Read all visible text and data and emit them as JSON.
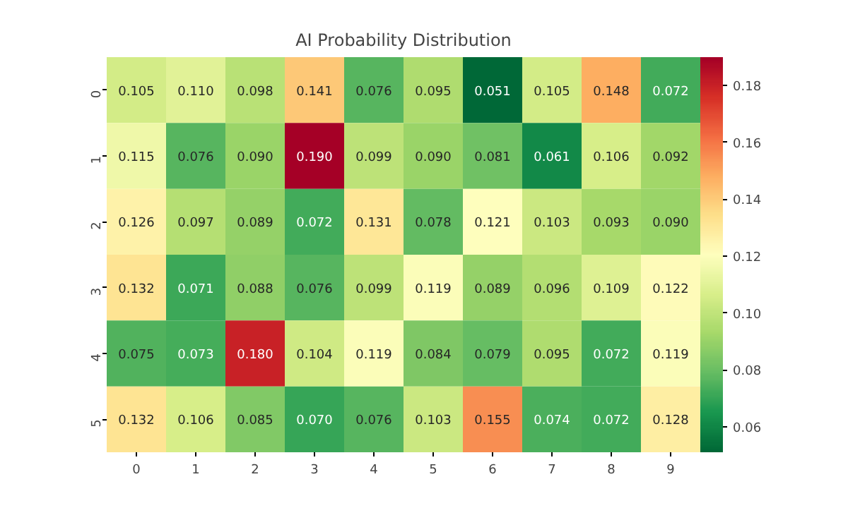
{
  "chart_data": {
    "type": "heatmap",
    "title": "AI Probability Distribution",
    "categories": [
      "0",
      "1",
      "2",
      "3",
      "4",
      "5",
      "6",
      "7",
      "8",
      "9"
    ],
    "y_categories": [
      "0",
      "1",
      "2",
      "3",
      "4",
      "5"
    ],
    "cells": [
      [
        0.105,
        0.11,
        0.098,
        0.141,
        0.076,
        0.095,
        0.051,
        0.105,
        0.148,
        0.072
      ],
      [
        0.115,
        0.076,
        0.09,
        0.19,
        0.099,
        0.09,
        0.081,
        0.061,
        0.106,
        0.092
      ],
      [
        0.126,
        0.097,
        0.089,
        0.072,
        0.131,
        0.078,
        0.121,
        0.103,
        0.093,
        0.09
      ],
      [
        0.132,
        0.071,
        0.088,
        0.076,
        0.099,
        0.119,
        0.089,
        0.096,
        0.109,
        0.122
      ],
      [
        0.075,
        0.073,
        0.18,
        0.104,
        0.119,
        0.084,
        0.079,
        0.095,
        0.072,
        0.119
      ],
      [
        0.132,
        0.106,
        0.085,
        0.07,
        0.076,
        0.103,
        0.155,
        0.074,
        0.072,
        0.128
      ]
    ],
    "clim": [
      0.051,
      0.19
    ],
    "cticks": [
      0.06,
      0.08,
      {
        "value": 0.1,
        "label": "0.10"
      },
      0.12,
      0.14,
      0.16,
      0.18
    ],
    "cell_labels": [
      [
        "0.105",
        "0.110",
        "0.098",
        "0.141",
        "0.076",
        "0.095",
        "0.051",
        "0.105",
        "0.148",
        "0.072"
      ],
      [
        "0.115",
        "0.076",
        "0.090",
        "0.190",
        "0.099",
        "0.090",
        "0.081",
        "0.061",
        "0.106",
        "0.092"
      ],
      [
        "0.126",
        "0.097",
        "0.089",
        "0.072",
        "0.131",
        "0.078",
        "0.121",
        "0.103",
        "0.093",
        "0.090"
      ],
      [
        "0.132",
        "0.071",
        "0.088",
        "0.076",
        "0.099",
        "0.119",
        "0.089",
        "0.096",
        "0.109",
        "0.122"
      ],
      [
        "0.075",
        "0.073",
        "0.180",
        "0.104",
        "0.119",
        "0.084",
        "0.079",
        "0.095",
        "0.072",
        "0.119"
      ],
      [
        "0.132",
        "0.106",
        "0.085",
        "0.070",
        "0.076",
        "0.103",
        "0.155",
        "0.074",
        "0.072",
        "0.128"
      ]
    ]
  }
}
